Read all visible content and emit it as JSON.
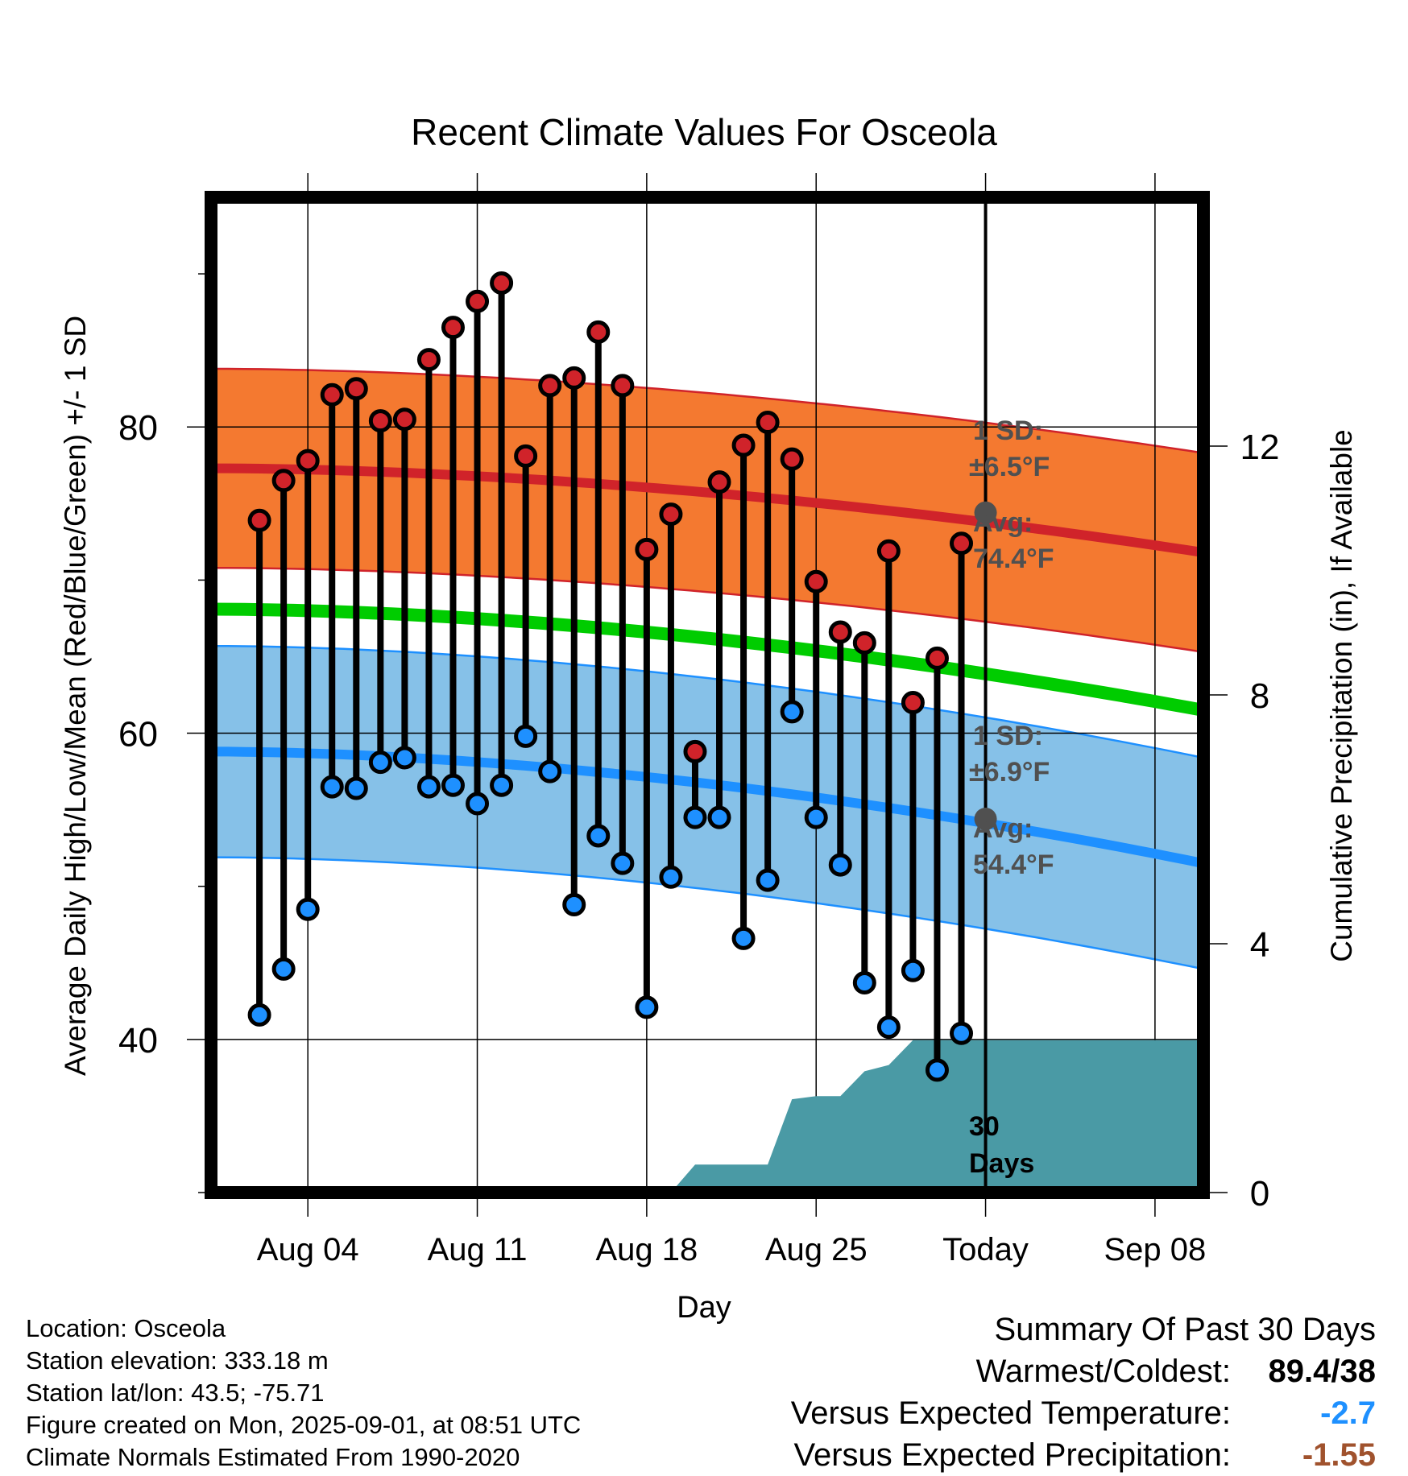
{
  "chart_data": {
    "type": "line",
    "title": "Recent Climate Values For Osceola",
    "xlabel": "Day",
    "ylabel": "Average Daily High/Low/Mean (Red/Blue/Green) +/- 1 SD",
    "y2label": "Cumulative Precipitation (in), If Available",
    "ylim": [
      30,
      95
    ],
    "y2lim": [
      0,
      16
    ],
    "yticks": [
      40,
      60,
      80
    ],
    "y2ticks": [
      0,
      4,
      8,
      12
    ],
    "x_range": [
      "2025-07-31",
      "2025-09-10"
    ],
    "x_ticks": [
      {
        "date": "2025-08-04",
        "label": "Aug 04"
      },
      {
        "date": "2025-08-11",
        "label": "Aug 11"
      },
      {
        "date": "2025-08-18",
        "label": "Aug 18"
      },
      {
        "date": "2025-08-25",
        "label": "Aug 25"
      },
      {
        "date": "2025-09-01",
        "label": "Today"
      },
      {
        "date": "2025-09-08",
        "label": "Sep 08"
      }
    ],
    "today": "2025-09-01",
    "grid": true,
    "daily_dates": [
      "2025-08-02",
      "2025-08-03",
      "2025-08-04",
      "2025-08-05",
      "2025-08-06",
      "2025-08-07",
      "2025-08-08",
      "2025-08-09",
      "2025-08-10",
      "2025-08-11",
      "2025-08-12",
      "2025-08-13",
      "2025-08-14",
      "2025-08-15",
      "2025-08-16",
      "2025-08-17",
      "2025-08-18",
      "2025-08-19",
      "2025-08-20",
      "2025-08-21",
      "2025-08-22",
      "2025-08-23",
      "2025-08-24",
      "2025-08-25",
      "2025-08-26",
      "2025-08-27",
      "2025-08-28",
      "2025-08-29",
      "2025-08-30",
      "2025-08-31"
    ],
    "series": [
      {
        "name": "High",
        "color": "#d0232a",
        "values": [
          73.9,
          76.5,
          77.8,
          82.1,
          82.5,
          80.4,
          80.5,
          84.4,
          86.5,
          88.2,
          89.4,
          78.1,
          82.7,
          83.2,
          86.2,
          82.7,
          72.0,
          74.3,
          58.8,
          76.4,
          78.8,
          80.3,
          77.9,
          69.9,
          66.6,
          65.9,
          71.9,
          62.0,
          64.9,
          72.4
        ]
      },
      {
        "name": "Low",
        "color": "#1e90ff",
        "values": [
          41.6,
          44.6,
          48.5,
          56.5,
          56.4,
          58.1,
          58.4,
          56.5,
          56.6,
          55.4,
          56.6,
          59.8,
          57.5,
          48.8,
          53.3,
          51.5,
          42.1,
          50.6,
          54.5,
          54.5,
          46.6,
          50.4,
          61.4,
          54.5,
          51.4,
          43.7,
          40.8,
          44.5,
          38.0,
          40.4
        ]
      }
    ],
    "normals": {
      "high": {
        "color": "#d0232a",
        "band_color": "#f47930",
        "start": 77.3,
        "end": 71.8,
        "today": 74.4,
        "sd": 6.5
      },
      "low": {
        "color": "#1e90ff",
        "band_color": "#86c1e8",
        "start": 58.8,
        "end": 51.5,
        "today": 54.4,
        "sd": 6.9
      },
      "mean": {
        "color": "#00cc00",
        "start": 68.1,
        "end": 61.5
      }
    },
    "precip": {
      "color": "#4a9aa5",
      "dates": [
        "2025-07-31",
        "2025-08-18",
        "2025-08-19",
        "2025-08-20",
        "2025-08-21",
        "2025-08-22",
        "2025-08-23",
        "2025-08-24",
        "2025-08-25",
        "2025-08-26",
        "2025-08-27",
        "2025-08-28",
        "2025-08-29",
        "2025-08-30",
        "2025-08-31",
        "2025-09-01",
        "2025-09-10"
      ],
      "values": [
        0,
        0,
        0,
        0.45,
        0.45,
        0.45,
        0.45,
        1.5,
        1.55,
        1.55,
        1.95,
        2.05,
        2.45,
        2.45,
        2.45,
        2.45,
        2.45
      ]
    },
    "annotations": {
      "high_sd_label": "1 SD:",
      "high_sd_value": "±6.5°F",
      "high_avg_label": "Avg:",
      "high_avg_value": "74.4°F",
      "low_sd_label": "1 SD:",
      "low_sd_value": "±6.9°F",
      "low_avg_label": "Avg:",
      "low_avg_value": "54.4°F",
      "period_line1": "30",
      "period_line2": "Days"
    }
  },
  "info": {
    "location": "Location: Osceola",
    "elevation": "Station elevation: 333.18 m",
    "latlon": "Station lat/lon: 43.5; -75.71",
    "created": "Figure created on Mon, 2025-09-01, at 08:51 UTC",
    "normals": "Climate Normals Estimated From 1990-2020"
  },
  "summary": {
    "title": "Summary Of Past 30 Days",
    "warmest_label": "Warmest/Coldest:",
    "warmest_value": "89.4/38",
    "temp_label": "Versus Expected Temperature:",
    "temp_value": "-2.7",
    "precip_label": "Versus Expected Precipitation:",
    "precip_value": "-1.55"
  }
}
